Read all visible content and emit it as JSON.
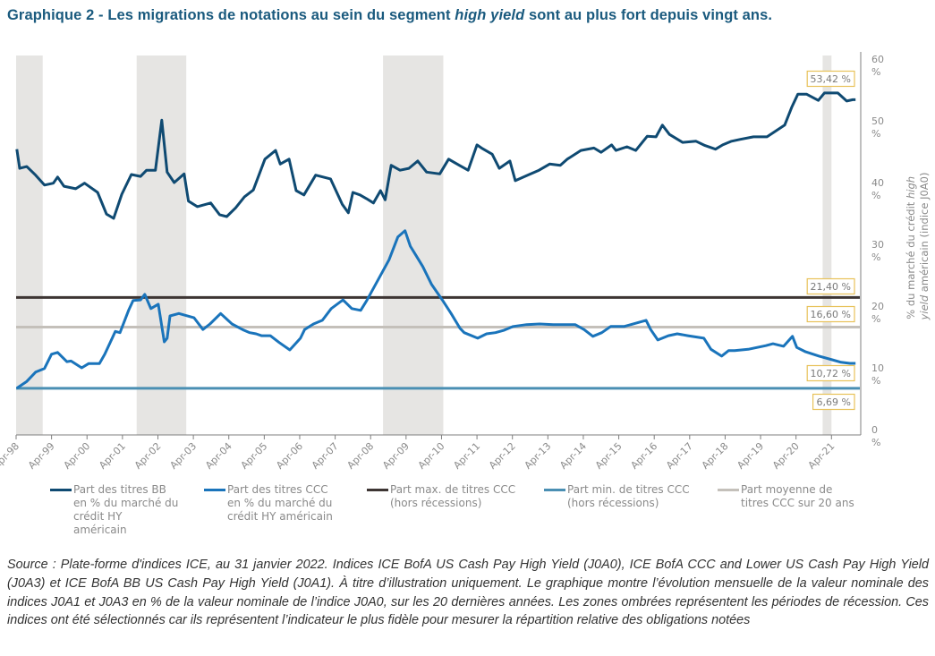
{
  "title": {
    "prefix": "Graphique 2 - Les migrations de notations au sein du segment ",
    "italic": "high yield",
    "suffix": " sont au plus fort depuis vingt ans."
  },
  "colors": {
    "bb": "#0f4a72",
    "ccc": "#1a74bb",
    "max": "#3d3533",
    "min": "#4a8fb3",
    "avg": "#c4c0ba",
    "recession": "#e6e5e3",
    "annotation_border": "#e8c25a"
  },
  "legend": [
    {
      "key": "bb",
      "label": "Part des titres BB\nen % du marché du\ncrédit HY\naméricain"
    },
    {
      "key": "ccc",
      "label": "Part des titres CCC\nen % du marché du\ncrédit HY américain"
    },
    {
      "key": "max",
      "label": "Part max. de titres CCC\n(hors récessions)"
    },
    {
      "key": "min",
      "label": "Part min. de titres CCC\n(hors récessions)"
    },
    {
      "key": "avg",
      "label": "Part moyenne de\ntitres CCC sur 20 ans"
    }
  ],
  "source": "Source : Plate-forme d'indices ICE, au 31 janvier 2022. Indices ICE BofA US Cash Pay High Yield (J0A0), ICE BofA CCC and Lower US Cash Pay High Yield (J0A3) et ICE BofA BB US Cash Pay High Yield (J0A1). À titre d’illustration uniquement. Le graphique montre l’évolution mensuelle de la valeur nominale des indices J0A1 et J0A3 en % de la valeur nominale de l’indice J0A0, sur les 20 dernières années. Les zones ombrées représentent les périodes de récession. Ces indices ont été sélectionnés car ils représentent l’indicateur le plus fidèle pour mesurer la répartition relative des obligations notées",
  "chart_data": {
    "type": "line",
    "title": "Les migrations de notations au sein du segment high yield sont au plus fort depuis vingt ans.",
    "xlabel": "",
    "ylabel": "% du marché du crédit high yield américain (indice J0A0)",
    "y_axis_side": "right",
    "ylim": [
      0,
      60
    ],
    "xlim": [
      1998.25,
      2022.05
    ],
    "y_ticks": [
      {
        "value": 0,
        "label": "0\n%"
      },
      {
        "value": 10,
        "label": "10\n%"
      },
      {
        "value": 20,
        "label": "20\n%"
      },
      {
        "value": 30,
        "label": "30\n%"
      },
      {
        "value": 40,
        "label": "40\n%"
      },
      {
        "value": 50,
        "label": "50\n%"
      },
      {
        "value": 60,
        "label": "60\n%"
      }
    ],
    "x_ticks": [
      {
        "value": 1998.25,
        "label": "Apr-98"
      },
      {
        "value": 1999.25,
        "label": "Apr-99"
      },
      {
        "value": 2000.25,
        "label": "Apr-00"
      },
      {
        "value": 2001.25,
        "label": "Apr-01"
      },
      {
        "value": 2002.25,
        "label": "Apr-02"
      },
      {
        "value": 2003.25,
        "label": "Apr-03"
      },
      {
        "value": 2004.25,
        "label": "Apr-04"
      },
      {
        "value": 2005.25,
        "label": "Apr-05"
      },
      {
        "value": 2006.25,
        "label": "Apr-06"
      },
      {
        "value": 2007.25,
        "label": "Apr-07"
      },
      {
        "value": 2008.25,
        "label": "Apr-08"
      },
      {
        "value": 2009.25,
        "label": "Apr-09"
      },
      {
        "value": 2010.25,
        "label": "Apr-10"
      },
      {
        "value": 2011.25,
        "label": "Apr-11"
      },
      {
        "value": 2012.25,
        "label": "Apr-12"
      },
      {
        "value": 2013.25,
        "label": "Apr-13"
      },
      {
        "value": 2014.25,
        "label": "Apr-14"
      },
      {
        "value": 2015.25,
        "label": "Apr-15"
      },
      {
        "value": 2016.25,
        "label": "Apr-16"
      },
      {
        "value": 2017.25,
        "label": "Apr-17"
      },
      {
        "value": 2018.25,
        "label": "Apr-18"
      },
      {
        "value": 2019.25,
        "label": "Apr-19"
      },
      {
        "value": 2020.25,
        "label": "Apr-20"
      },
      {
        "value": 2021.25,
        "label": "Apr-21"
      }
    ],
    "grid": false,
    "legend_position": "bottom",
    "recessions": [
      [
        1998.25,
        1999.0
      ],
      [
        2001.65,
        2003.05
      ],
      [
        2008.6,
        2010.3
      ],
      [
        2021.0,
        2021.25
      ]
    ],
    "series": [
      {
        "key": "bb",
        "name": "Part des titres BB en % du marché du crédit HY américain",
        "x": [
          1998.27,
          1998.35,
          1998.55,
          1998.8,
          1999.05,
          1999.3,
          1999.42,
          1999.6,
          1999.93,
          2000.18,
          2000.55,
          2000.8,
          2001.0,
          2001.23,
          2001.5,
          2001.76,
          2001.93,
          2002.18,
          2002.36,
          2002.51,
          2002.71,
          2002.99,
          3003.11,
          2003.36,
          2003.74,
          2003.99,
          2004.19,
          2004.44,
          2004.69,
          2004.94,
          2005.27,
          2005.57,
          2005.7,
          2005.95,
          2006.15,
          2006.37,
          2006.7,
          2007.12,
          2007.45,
          2007.62,
          2007.75,
          2007.95,
          2008.13,
          2008.33,
          2008.53,
          2008.66,
          2008.83,
          2009.08,
          2009.33,
          2009.58,
          2009.83,
          2010.2,
          2010.45,
          2010.75,
          2011.0,
          2011.25,
          2011.38,
          2011.68,
          2011.88,
          2012.18,
          2012.33,
          2012.68,
          2013.0,
          2013.3,
          2013.6,
          2013.8,
          2014.18,
          2014.55,
          2014.75,
          2015.05,
          2015.17,
          2015.48,
          2015.73,
          2016.05,
          2016.3,
          2016.48,
          2016.68,
          2017.05,
          2017.43,
          2017.68,
          2017.98,
          2018.18,
          2018.43,
          2018.68,
          2019.05,
          2019.43,
          2019.93,
          2020.13,
          2020.3,
          2020.55,
          2020.88,
          2021.05,
          2021.43,
          2021.68,
          2021.85,
          2021.93
        ],
        "values": [
          45.4,
          42.3,
          42.6,
          41.2,
          39.6,
          39.9,
          40.9,
          39.4,
          39.0,
          39.9,
          38.4,
          34.9,
          34.2,
          38.1,
          41.3,
          41.0,
          42.0,
          42.0,
          50.1,
          41.7,
          40.0,
          41.4,
          37.0,
          36.1,
          36.7,
          34.8,
          34.5,
          35.9,
          37.7,
          38.8,
          43.8,
          45.2,
          43.0,
          43.8,
          38.7,
          38.0,
          41.2,
          40.6,
          36.5,
          35.1,
          38.4,
          38.0,
          37.4,
          36.7,
          38.7,
          37.2,
          42.8,
          42.0,
          42.3,
          43.5,
          41.7,
          41.4,
          43.8,
          42.8,
          42.0,
          46.1,
          45.6,
          44.6,
          42.3,
          43.5,
          40.3,
          41.2,
          42.0,
          43.0,
          42.8,
          43.8,
          45.2,
          45.6,
          44.9,
          46.1,
          45.2,
          45.8,
          45.2,
          47.5,
          47.4,
          49.3,
          47.8,
          46.5,
          46.7,
          46.0,
          45.4,
          46.1,
          46.7,
          47.0,
          47.4,
          47.4,
          49.3,
          52.2,
          54.3,
          54.3,
          53.3,
          54.5,
          54.5,
          53.2,
          53.42,
          53.42
        ],
        "end_label": "53,42 %"
      },
      {
        "key": "ccc",
        "name": "Part des titres CCC en % du marché du crédit HY américain",
        "x": [
          1998.27,
          1998.55,
          1998.8,
          1999.05,
          1999.25,
          1999.42,
          1999.68,
          1999.8,
          2000.1,
          2000.3,
          2000.6,
          2000.75,
          2001.05,
          2001.18,
          2001.43,
          2001.55,
          2001.76,
          2001.88,
          2002.05,
          2002.26,
          2002.43,
          2002.51,
          2002.59,
          2002.84,
          2003.27,
          2003.52,
          2003.72,
          2004.02,
          2004.34,
          2004.67,
          2004.84,
          2005.02,
          2005.17,
          2005.42,
          2005.67,
          2005.97,
          2006.27,
          2006.39,
          2006.64,
          2006.89,
          2007.14,
          2007.47,
          2007.72,
          2007.97,
          2008.14,
          2008.77,
          2009.02,
          2009.22,
          2009.37,
          2009.52,
          2009.72,
          2009.97,
          2010.27,
          2010.52,
          2010.77,
          2010.89,
          2011.27,
          2011.52,
          2011.77,
          2012.02,
          2012.27,
          2012.65,
          2013.02,
          2013.4,
          2013.65,
          2014.02,
          2014.27,
          2014.52,
          2014.77,
          2015.02,
          2015.4,
          2016.02,
          2016.15,
          2016.35,
          2016.65,
          2016.9,
          2017.2,
          2017.65,
          2017.85,
          2018.15,
          2018.35,
          2018.52,
          2018.9,
          2019.4,
          2019.6,
          2019.9,
          2020.15,
          2020.27,
          2020.52,
          2020.9,
          2021.27,
          2021.52,
          2021.77,
          2021.93
        ],
        "values": [
          6.69,
          7.8,
          9.3,
          9.9,
          12.2,
          12.5,
          11.0,
          11.1,
          10.0,
          10.7,
          10.7,
          12.2,
          15.9,
          15.7,
          19.4,
          20.9,
          21.0,
          21.9,
          19.6,
          20.3,
          14.2,
          14.8,
          18.4,
          18.8,
          18.1,
          16.2,
          17.1,
          18.8,
          17.1,
          16.1,
          15.7,
          15.5,
          15.2,
          15.2,
          14.1,
          12.9,
          14.8,
          16.2,
          17.1,
          17.7,
          19.6,
          21.0,
          19.6,
          19.3,
          20.9,
          27.5,
          31.2,
          32.2,
          29.7,
          28.3,
          26.4,
          23.5,
          21.0,
          18.8,
          16.4,
          15.7,
          14.8,
          15.5,
          15.7,
          16.1,
          16.7,
          17.0,
          17.1,
          17.0,
          17.0,
          17.0,
          16.2,
          15.1,
          15.7,
          16.7,
          16.7,
          17.7,
          16.2,
          14.5,
          15.2,
          15.5,
          15.2,
          14.8,
          13.0,
          11.9,
          12.8,
          12.8,
          13.0,
          13.6,
          13.9,
          13.5,
          15.1,
          13.3,
          12.6,
          11.9,
          11.3,
          10.9,
          10.72,
          10.72
        ],
        "end_label": "10,72 %"
      }
    ],
    "reference_lines": [
      {
        "key": "max",
        "name": "Part max. de titres CCC (hors récessions)",
        "value": 21.4,
        "label": "21,40 %"
      },
      {
        "key": "avg",
        "name": "Part moyenne de titres CCC sur 20 ans",
        "value": 16.6,
        "label": "16,60 %"
      },
      {
        "key": "min",
        "name": "Part min. de titres CCC (hors récessions)",
        "value": 6.69,
        "label": "6,69 %"
      }
    ]
  }
}
